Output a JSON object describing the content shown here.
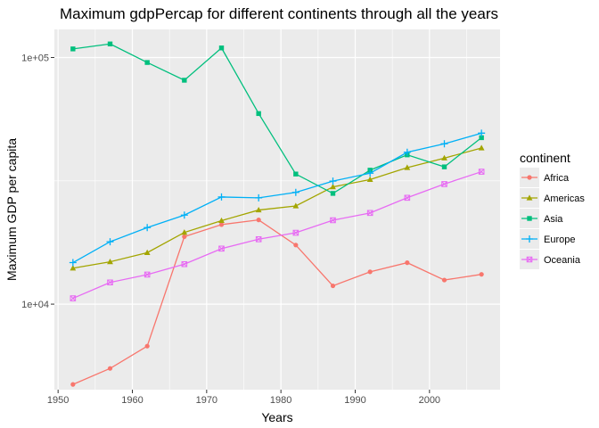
{
  "chart_data": {
    "type": "line",
    "title": "Maximum gdpPercap for different continents through all the years",
    "xlabel": "Years",
    "ylabel": "Maximum GDP per capita",
    "xlim": [
      1949.5,
      2009.5
    ],
    "ylim": [
      4500,
      130000
    ],
    "y_scale": "log10",
    "grid": true,
    "x_ticks": [
      1950,
      1960,
      1970,
      1980,
      1990,
      2000
    ],
    "x_tick_labels": [
      "1950",
      "1960",
      "1970",
      "1980",
      "1990",
      "2000"
    ],
    "y_ticks": [
      10000,
      100000
    ],
    "y_tick_labels": [
      "1e+04",
      "1e+05"
    ],
    "legend": {
      "title": "continent",
      "position": "right"
    },
    "x": [
      1952,
      1957,
      1962,
      1967,
      1972,
      1977,
      1982,
      1987,
      1992,
      1997,
      2002,
      2007
    ],
    "series": [
      {
        "name": "Africa",
        "color": "#F8766D",
        "marker": "circle",
        "values": [
          4725,
          5487,
          6757,
          18773,
          21011,
          21951,
          17364,
          11864,
          13522,
          14723,
          12522,
          13206
        ]
      },
      {
        "name": "Americas",
        "color": "#A3A500",
        "marker": "triangle",
        "values": [
          13990,
          14847,
          16173,
          19530,
          21806,
          24073,
          25010,
          29884,
          32004,
          35767,
          39097,
          42952
        ]
      },
      {
        "name": "Asia",
        "color": "#00BF7D",
        "marker": "square",
        "values": [
          108382,
          113523,
          95458,
          80895,
          109348,
          59265,
          33693,
          28118,
          34933,
          40300,
          36023,
          47307
        ]
      },
      {
        "name": "Europe",
        "color": "#00B0F6",
        "marker": "plus",
        "values": [
          14734,
          17909,
          20431,
          22966,
          27195,
          26982,
          28398,
          31541,
          33966,
          41283,
          44684,
          49357
        ]
      },
      {
        "name": "Oceania",
        "color": "#E76BF3",
        "marker": "square-cross",
        "values": [
          10557,
          12247,
          13176,
          14526,
          16789,
          18334,
          19477,
          21889,
          23425,
          26998,
          30688,
          34435
        ]
      }
    ]
  }
}
